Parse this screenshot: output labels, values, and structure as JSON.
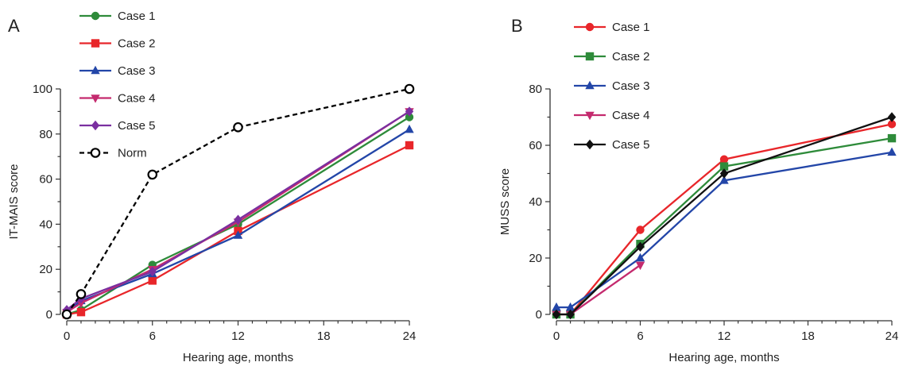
{
  "chart_data": [
    {
      "panel_label": "A",
      "type": "line",
      "xlabel": "Hearing age, months",
      "ylabel": "IT-MAIS score",
      "xlim": [
        0,
        24
      ],
      "ylim": [
        0,
        100
      ],
      "xticks": [
        0,
        6,
        12,
        18,
        24
      ],
      "yticks": [
        0,
        20,
        40,
        60,
        80,
        100
      ],
      "grid": false,
      "legend_position": "top-left",
      "series": [
        {
          "name": "Case 1",
          "color": "#2e8b3a",
          "marker": "circle",
          "dashed": false,
          "x": [
            0,
            1,
            6,
            12,
            24
          ],
          "y": [
            0,
            2,
            22,
            40,
            87.5
          ]
        },
        {
          "name": "Case 2",
          "color": "#e8262a",
          "marker": "square",
          "dashed": false,
          "x": [
            0,
            1,
            6,
            12,
            24
          ],
          "y": [
            0,
            1,
            15,
            37,
            75
          ]
        },
        {
          "name": "Case 3",
          "color": "#2346a8",
          "marker": "triangle-up",
          "dashed": false,
          "x": [
            0,
            1,
            6,
            12,
            24
          ],
          "y": [
            1,
            6,
            18,
            35,
            82
          ]
        },
        {
          "name": "Case 4",
          "color": "#c42a6e",
          "marker": "triangle-down",
          "dashed": false,
          "x": [
            0,
            1,
            6,
            12,
            24
          ],
          "y": [
            1,
            5,
            20,
            41,
            90
          ]
        },
        {
          "name": "Case 5",
          "color": "#7a2fa0",
          "marker": "diamond",
          "dashed": false,
          "x": [
            0,
            1,
            6,
            12,
            24
          ],
          "y": [
            2,
            7,
            19,
            42,
            90
          ]
        },
        {
          "name": "Norm",
          "color": "#000000",
          "marker": "open-circle",
          "dashed": true,
          "x": [
            0,
            1,
            6,
            12,
            24
          ],
          "y": [
            0,
            9,
            62,
            83,
            100
          ]
        }
      ]
    },
    {
      "panel_label": "B",
      "type": "line",
      "xlabel": "Hearing age, months",
      "ylabel": "MUSS score",
      "xlim": [
        0,
        24
      ],
      "ylim": [
        0,
        80
      ],
      "xticks": [
        0,
        6,
        12,
        18,
        24
      ],
      "yticks": [
        0,
        20,
        40,
        60,
        80
      ],
      "grid": false,
      "legend_position": "top-left",
      "series": [
        {
          "name": "Case 1",
          "color": "#e8262a",
          "marker": "circle",
          "dashed": false,
          "x": [
            0,
            1,
            6,
            12,
            24
          ],
          "y": [
            0,
            0,
            30,
            55,
            67.5
          ]
        },
        {
          "name": "Case 2",
          "color": "#2e8b3a",
          "marker": "square",
          "dashed": false,
          "x": [
            0,
            1,
            6,
            12,
            24
          ],
          "y": [
            0,
            0,
            25,
            52.5,
            62.5
          ]
        },
        {
          "name": "Case 3",
          "color": "#2346a8",
          "marker": "triangle-up",
          "dashed": false,
          "x": [
            0,
            1,
            6,
            12,
            24
          ],
          "y": [
            2.5,
            2.5,
            20,
            47.5,
            57.5
          ]
        },
        {
          "name": "Case 4",
          "color": "#c42a6e",
          "marker": "triangle-down",
          "dashed": false,
          "x": [
            0,
            1,
            6
          ],
          "y": [
            0,
            0,
            17.5
          ]
        },
        {
          "name": "Case 5",
          "color": "#111111",
          "marker": "diamond",
          "dashed": false,
          "x": [
            0,
            1,
            6,
            12,
            24
          ],
          "y": [
            0,
            0,
            24,
            50,
            70
          ]
        }
      ]
    }
  ]
}
